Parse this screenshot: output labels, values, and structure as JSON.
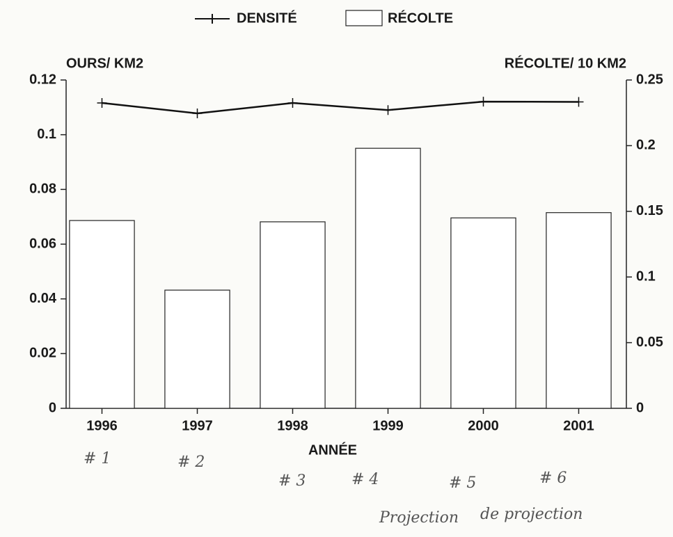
{
  "chart_data": {
    "type": "bar-line",
    "categories": [
      "1996",
      "1997",
      "1998",
      "1999",
      "2000",
      "2001"
    ],
    "series": [
      {
        "name": "DENSITÉ",
        "type": "line",
        "axis": "y",
        "color": "#111111",
        "values": [
          0.1116,
          0.1078,
          0.1116,
          0.109,
          0.1121,
          0.112
        ]
      },
      {
        "name": "RÉCOLTE",
        "type": "bar",
        "axis": "y2",
        "color": "#ffffff",
        "values": [
          0.143,
          0.09,
          0.142,
          0.198,
          0.145,
          0.149
        ]
      }
    ],
    "ylabel": "OURS/ KM2",
    "y2label": "RÉCOLTE/ 10 KM2",
    "xlabel": "ANNÉE",
    "ylim": [
      0,
      0.12
    ],
    "yticks": [
      0,
      0.02,
      0.04,
      0.06,
      0.08,
      0.1,
      0.12
    ],
    "y2lim": [
      0,
      0.25
    ],
    "y2ticks": [
      0,
      0.05,
      0.1,
      0.15,
      0.2,
      0.25
    ],
    "legend": "top",
    "annotations": [
      "# 1",
      "# 2",
      "# 3",
      "# 4",
      "# 5",
      "# 6",
      "Projection",
      "de projection"
    ]
  }
}
